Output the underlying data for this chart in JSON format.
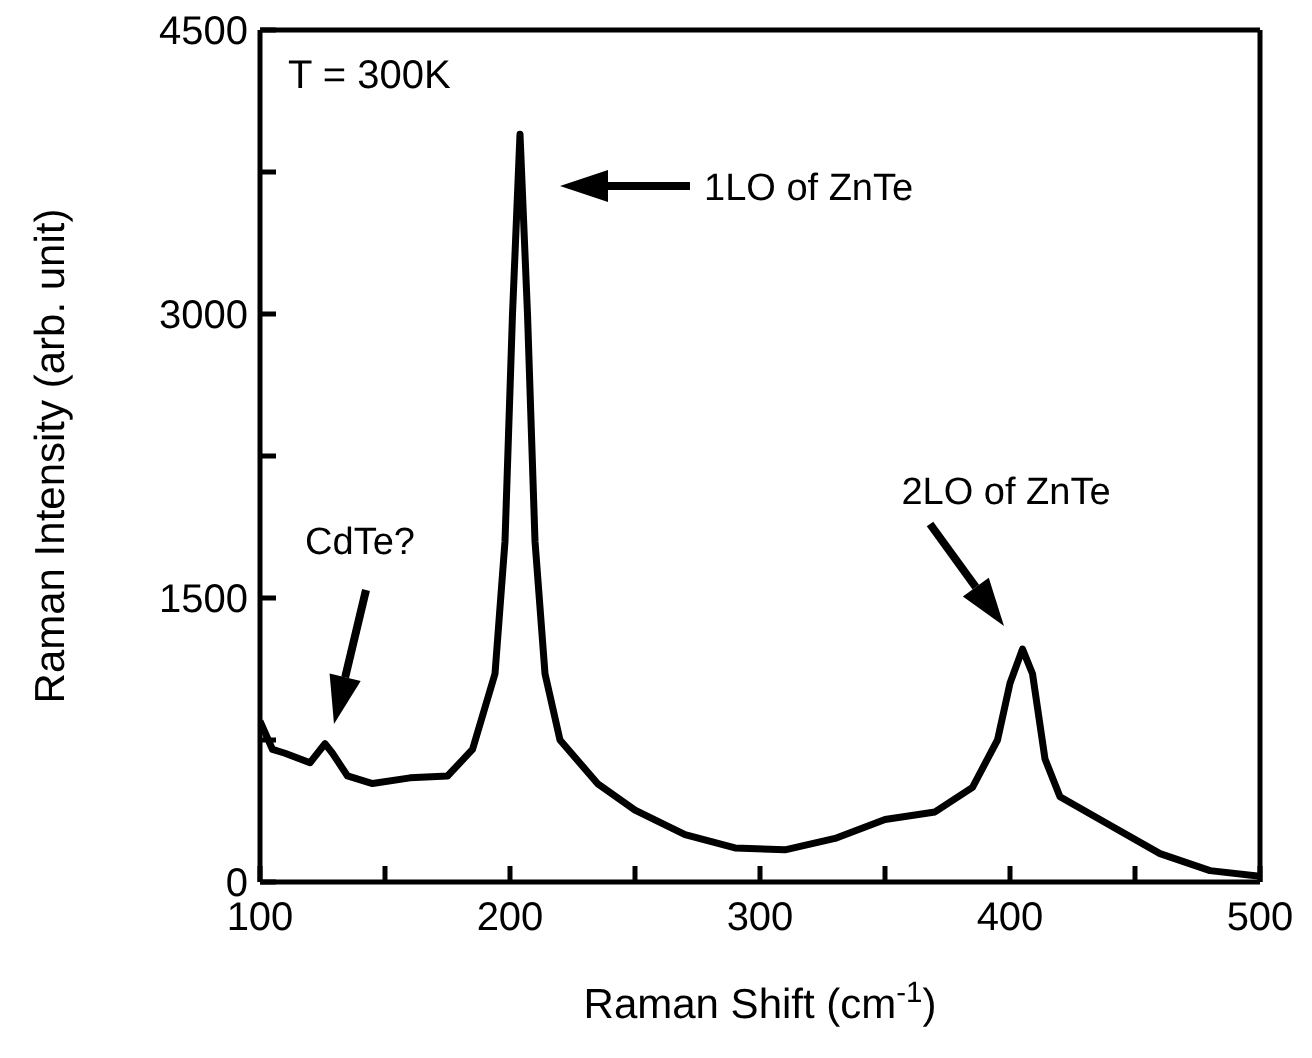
{
  "chart_data": {
    "type": "line",
    "xlabel": "Raman Shift (cm$^{-1}$)",
    "ylabel": "Raman Intensity (arb. unit)",
    "x": [
      100,
      105,
      110,
      120,
      126,
      129,
      135,
      145,
      160,
      175,
      185,
      194,
      198,
      201,
      204,
      207,
      210,
      214,
      220,
      235,
      250,
      270,
      290,
      310,
      330,
      350,
      370,
      385,
      395,
      400,
      405,
      409,
      414,
      420,
      440,
      460,
      480,
      500
    ],
    "series": [
      {
        "color": "#000000",
        "values": [
          850,
          700,
          680,
          630,
          730,
          680,
          560,
          520,
          550,
          560,
          700,
          1100,
          1800,
          3000,
          3950,
          3000,
          1800,
          1100,
          750,
          520,
          380,
          250,
          180,
          170,
          230,
          330,
          370,
          500,
          750,
          1050,
          1230,
          1100,
          650,
          450,
          300,
          150,
          60,
          30
        ]
      }
    ],
    "xlim": [
      100,
      500
    ],
    "xticks": [
      100,
      {
        "value": 150,
        "label": null
      },
      200,
      {
        "value": 250,
        "label": null
      },
      300,
      {
        "value": 350,
        "label": null
      },
      400,
      {
        "value": 450,
        "label": null
      },
      500
    ],
    "ylim": [
      0,
      4500
    ],
    "yticks": [
      0,
      {
        "value": 750,
        "label": null
      },
      1500,
      {
        "value": 2250,
        "label": null
      },
      3000,
      {
        "value": 3750,
        "label": null
      },
      4500
    ],
    "marker": "none",
    "line_style": "solid",
    "annotations": [
      "T = 300K",
      "1LO of ZnTe",
      "2LO of ZnTe",
      "CdTe?"
    ]
  }
}
